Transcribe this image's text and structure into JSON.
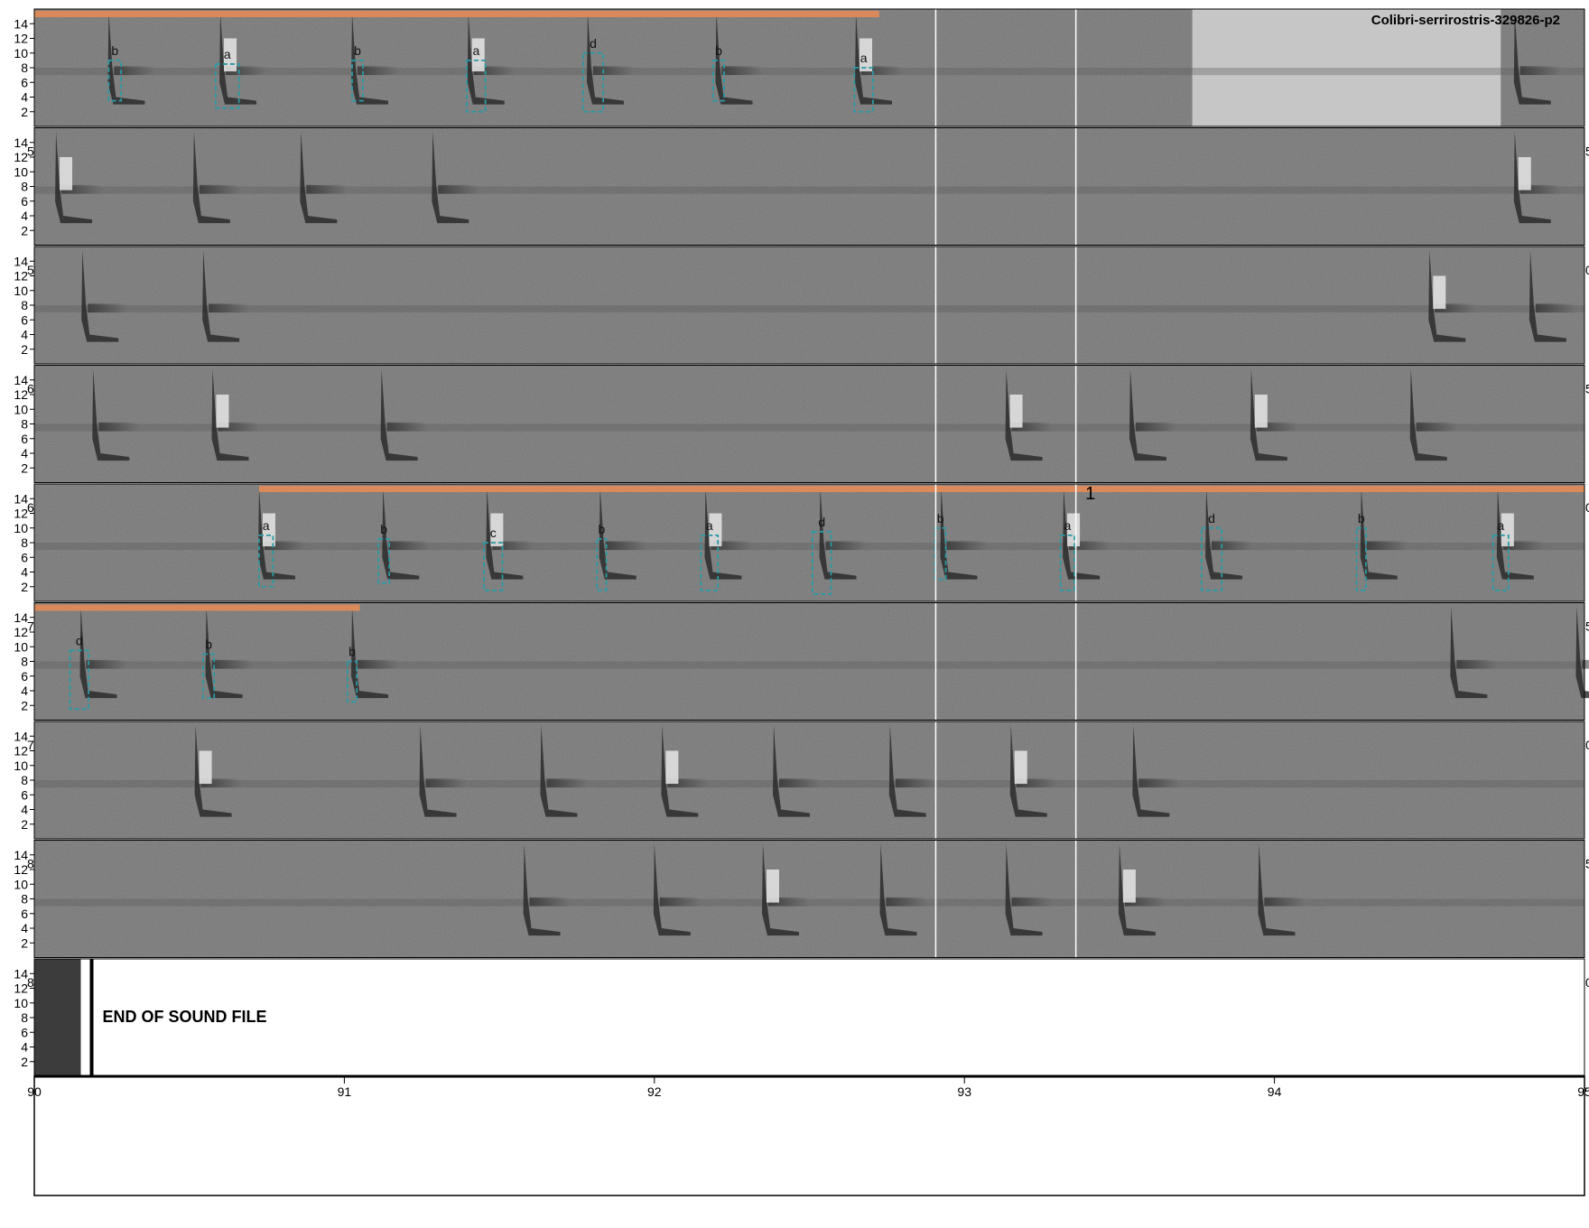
{
  "title": "Colibri-serrirostris-329826-p2",
  "end_text": "END OF SOUND FILE",
  "colors": {
    "background": "#8e8e8e",
    "noise_band": "#5a5a5a",
    "call": "#262626",
    "call_light": "#e0e0e0",
    "selection_box": "#2a9aa6",
    "sequence_bar": "#d9895a",
    "gap_line": "#ffffff"
  },
  "chart_data": {
    "type": "heatmap",
    "y_ticks": [
      2,
      4,
      6,
      8,
      10,
      12,
      14
    ],
    "x_ticks": [
      "90",
      "91",
      "92",
      "93",
      "94",
      "95"
    ],
    "rows": 9,
    "gap_fractions": [
      0.5815,
      0.6719
    ],
    "rows_data": [
      {
        "left_label": "",
        "right_label": "",
        "bars": [
          [
            0.0,
            0.545
          ]
        ],
        "calls": [
          0.048,
          0.12,
          0.205,
          0.28,
          0.357,
          0.44,
          0.53,
          0.955
        ],
        "bright_calls": [
          0.12,
          0.28,
          0.53
        ],
        "boxes": [
          {
            "x": 0.048,
            "w": 0.008,
            "label": "b",
            "top": 9,
            "bottom": 3.5
          },
          {
            "x": 0.117,
            "w": 0.015,
            "label": "a",
            "top": 8.5,
            "bottom": 2.5
          },
          {
            "x": 0.205,
            "w": 0.007,
            "label": "b",
            "top": 9,
            "bottom": 3.5
          },
          {
            "x": 0.279,
            "w": 0.012,
            "label": "a",
            "top": 9,
            "bottom": 2
          },
          {
            "x": 0.354,
            "w": 0.013,
            "label": "d",
            "top": 10,
            "bottom": 2
          },
          {
            "x": 0.438,
            "w": 0.007,
            "label": "b",
            "top": 9,
            "bottom": 3.5
          },
          {
            "x": 0.529,
            "w": 0.012,
            "label": "a",
            "top": 8,
            "bottom": 2
          }
        ],
        "light_patch": [
          0.747,
          0.946
        ]
      },
      {
        "left_label": "5",
        "right_label": "5",
        "bars": [],
        "calls": [
          0.014,
          0.103,
          0.172,
          0.257,
          0.955
        ],
        "bright_calls": [
          0.014,
          0.955
        ],
        "boxes": []
      },
      {
        "left_label": "5",
        "right_label": "0",
        "bars": [],
        "calls": [
          0.031,
          0.109,
          0.9,
          0.965
        ],
        "bright_calls": [
          0.9
        ],
        "boxes": []
      },
      {
        "left_label": "6",
        "right_label": "5",
        "bars": [],
        "calls": [
          0.038,
          0.115,
          0.224,
          0.627,
          0.707,
          0.785,
          0.888
        ],
        "bright_calls": [
          0.115,
          0.627,
          0.785
        ],
        "boxes": []
      },
      {
        "left_label": "6",
        "right_label": "0",
        "number_label": "1",
        "bars": [
          [
            0.145,
            1.0
          ]
        ],
        "calls": [
          0.145,
          0.225,
          0.292,
          0.365,
          0.433,
          0.507,
          0.585,
          0.664,
          0.756,
          0.856,
          0.944
        ],
        "bright_calls": [
          0.145,
          0.292,
          0.433,
          0.664,
          0.944
        ],
        "boxes": [
          {
            "x": 0.145,
            "w": 0.009,
            "label": "a",
            "top": 9,
            "bottom": 2
          },
          {
            "x": 0.222,
            "w": 0.007,
            "label": "b",
            "top": 8.5,
            "bottom": 2.5
          },
          {
            "x": 0.29,
            "w": 0.012,
            "label": "c",
            "top": 8,
            "bottom": 1.5
          },
          {
            "x": 0.363,
            "w": 0.006,
            "label": "b",
            "top": 8.5,
            "bottom": 1.5
          },
          {
            "x": 0.43,
            "w": 0.011,
            "label": "a",
            "top": 9,
            "bottom": 1.5
          },
          {
            "x": 0.502,
            "w": 0.012,
            "label": "d",
            "top": 9.5,
            "bottom": 1
          },
          {
            "x": 0.581,
            "w": 0.007,
            "label": "b",
            "top": 10,
            "bottom": 3
          },
          {
            "x": 0.662,
            "w": 0.009,
            "label": "a",
            "top": 9,
            "bottom": 1.5
          },
          {
            "x": 0.753,
            "w": 0.013,
            "label": "d",
            "top": 10,
            "bottom": 1.5
          },
          {
            "x": 0.853,
            "w": 0.006,
            "label": "b",
            "top": 10,
            "bottom": 1.5
          },
          {
            "x": 0.941,
            "w": 0.01,
            "label": "a",
            "top": 9,
            "bottom": 1.5
          }
        ]
      },
      {
        "left_label": "7",
        "right_label": "5",
        "bars": [
          [
            0.0,
            0.21
          ]
        ],
        "calls": [
          0.03,
          0.111,
          0.205,
          0.914,
          0.995
        ],
        "bright_calls": [],
        "boxes": [
          {
            "x": 0.023,
            "w": 0.012,
            "label": "d",
            "top": 9.5,
            "bottom": 1.5
          },
          {
            "x": 0.109,
            "w": 0.007,
            "label": "b",
            "top": 9,
            "bottom": 3
          },
          {
            "x": 0.202,
            "w": 0.006,
            "label": "b",
            "top": 8,
            "bottom": 2.5
          }
        ]
      },
      {
        "left_label": "7",
        "right_label": "0",
        "bars": [],
        "calls": [
          0.104,
          0.249,
          0.327,
          0.405,
          0.477,
          0.552,
          0.63,
          0.709
        ],
        "bright_calls": [
          0.104,
          0.405,
          0.63
        ],
        "boxes": []
      },
      {
        "left_label": "8",
        "right_label": "5",
        "bars": [],
        "calls": [
          0.316,
          0.4,
          0.47,
          0.546,
          0.627,
          0.7,
          0.79
        ],
        "bright_calls": [
          0.47,
          0.7
        ],
        "boxes": []
      },
      {
        "left_label": "8",
        "right_label": "0",
        "bars": [],
        "calls": [],
        "bright_calls": [],
        "boxes": [],
        "end_fraction": 0.03
      }
    ]
  }
}
